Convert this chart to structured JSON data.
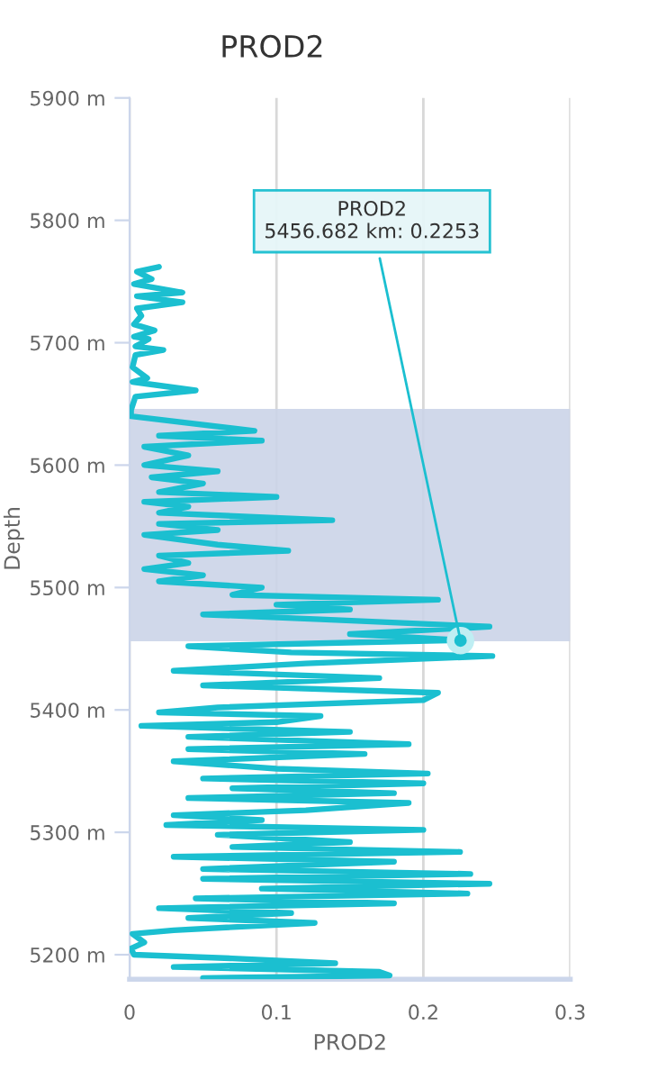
{
  "chart_data": {
    "type": "line",
    "title": "PROD2",
    "xlabel": "PROD2",
    "ylabel": "Depth",
    "xlim": [
      0,
      0.3
    ],
    "xticks": [
      0,
      0.1,
      0.2,
      0.3
    ],
    "ylim": [
      5180,
      5900
    ],
    "yticks": [
      {
        "value": 5200,
        "label": "5200 m"
      },
      {
        "value": 5300,
        "label": "5300 m"
      },
      {
        "value": 5400,
        "label": "5400 m"
      },
      {
        "value": 5500,
        "label": "5500 m"
      },
      {
        "value": 5600,
        "label": "5600 m"
      },
      {
        "value": 5700,
        "label": "5700 m"
      },
      {
        "value": 5800,
        "label": "5800 m"
      },
      {
        "value": 5900,
        "label": "5900 m"
      }
    ],
    "grid": "x",
    "marker": "none",
    "line_style": "solid",
    "bands": [
      {
        "axis": "y",
        "from": 5456,
        "to": 5646,
        "color": "#cbd4e8"
      }
    ],
    "annotations": [
      {
        "text": "PROD2\n5456.682 km: 0.2253",
        "x": 0.2253,
        "y": 5456.682
      }
    ],
    "series": [
      {
        "color": "#1bbfd0",
        "x": [
          0.02,
          0.005,
          0.015,
          0.003,
          0.036,
          0.005,
          0.036,
          0.005,
          0.008,
          0.003,
          0.017,
          0.003,
          0.013,
          0.004,
          0.023,
          0.004,
          0.002,
          0.012,
          0.002,
          0.045,
          0.004,
          0.001,
          0.001,
          0.085,
          0.02,
          0.09,
          0.01,
          0.04,
          0.01,
          0.06,
          0.015,
          0.05,
          0.02,
          0.1,
          0.01,
          0.04,
          0.02,
          0.138,
          0.02,
          0.06,
          0.01,
          0.06,
          0.108,
          0.02,
          0.04,
          0.01,
          0.05,
          0.02,
          0.09,
          0.07,
          0.21,
          0.1,
          0.15,
          0.05,
          0.13,
          0.245,
          0.15,
          0.2253,
          0.04,
          0.11,
          0.247,
          0.12,
          0.03,
          0.17,
          0.05,
          0.21,
          0.2,
          0.06,
          0.02,
          0.13,
          0.1,
          0.008,
          0.15,
          0.04,
          0.19,
          0.04,
          0.16,
          0.03,
          0.1,
          0.203,
          0.05,
          0.2,
          0.07,
          0.18,
          0.04,
          0.19,
          0.12,
          0.03,
          0.09,
          0.025,
          0.2,
          0.06,
          0.15,
          0.07,
          0.225,
          0.03,
          0.18,
          0.05,
          0.232,
          0.05,
          0.245,
          0.09,
          0.23,
          0.045,
          0.18,
          0.02,
          0.11,
          0.04,
          0.126,
          0.03,
          0.002,
          0.01,
          0.001,
          0.003,
          0.07,
          0.14,
          0.03,
          0.17,
          0.177,
          0.05,
          0.1
        ],
        "values": [
          5762,
          5758,
          5752,
          5748,
          5741,
          5738,
          5733,
          5728,
          5722,
          5715,
          5710,
          5705,
          5703,
          5697,
          5694,
          5690,
          5680,
          5671,
          5668,
          5661,
          5656,
          5645,
          5640,
          5628,
          5624,
          5620,
          5615,
          5608,
          5600,
          5595,
          5590,
          5585,
          5578,
          5574,
          5570,
          5566,
          5561,
          5555,
          5552,
          5547,
          5543,
          5535,
          5530,
          5526,
          5520,
          5515,
          5510,
          5505,
          5500,
          5494,
          5490,
          5486,
          5482,
          5478,
          5474,
          5468,
          5462,
          5457,
          5452,
          5447,
          5444,
          5438,
          5432,
          5426,
          5420,
          5414,
          5408,
          5402,
          5398,
          5395,
          5390,
          5387,
          5382,
          5378,
          5372,
          5368,
          5364,
          5358,
          5352,
          5348,
          5344,
          5340,
          5336,
          5332,
          5328,
          5324,
          5318,
          5314,
          5310,
          5306,
          5302,
          5298,
          5292,
          5288,
          5284,
          5280,
          5276,
          5270,
          5266,
          5262,
          5258,
          5254,
          5250,
          5246,
          5242,
          5238,
          5234,
          5230,
          5226,
          5220,
          5217,
          5210,
          5205,
          5200,
          5197,
          5193,
          5190,
          5186,
          5183,
          5181,
          5180
        ]
      }
    ]
  }
}
